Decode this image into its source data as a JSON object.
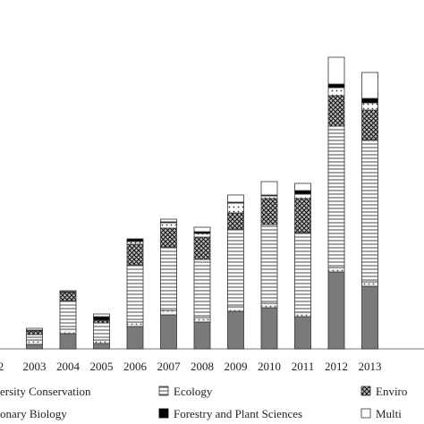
{
  "chart_data": {
    "type": "bar",
    "stacked": true,
    "title": "",
    "xlabel": "",
    "ylabel": "",
    "ylim": [
      0,
      340
    ],
    "grid": false,
    "legend_position": "bottom",
    "categories": [
      "2",
      "2003",
      "2004",
      "2005",
      "2006",
      "2007",
      "2008",
      "2009",
      "2010",
      "2011",
      "2012",
      "2013"
    ],
    "series": [
      {
        "name": "ersity Conservation",
        "pattern": "solid",
        "color": "#7a7a7a",
        "values": [
          0,
          5,
          17,
          6,
          25,
          38,
          30,
          42,
          46,
          36,
          86,
          70
        ]
      },
      {
        "name": "onary Biology",
        "pattern": "dots-light",
        "color": "#e6e6e6",
        "values": [
          0,
          5,
          5,
          4,
          5,
          5,
          5,
          5,
          5,
          5,
          5,
          5
        ]
      },
      {
        "name": "Ecology",
        "pattern": "horizontal-lines",
        "color": "#ffffff",
        "values": [
          0,
          6,
          32,
          19,
          64,
          71,
          65,
          87,
          88,
          89,
          158,
          159
        ]
      },
      {
        "name": "Environ",
        "pattern": "crosshatch",
        "color": "#444444",
        "values": [
          0,
          0,
          0,
          0,
          0,
          0,
          0,
          0,
          0,
          0,
          0,
          0
        ]
      },
      {
        "name": "Forestry and Plant Sciences",
        "pattern": "solid",
        "color": "#000000",
        "values": [
          0,
          0,
          0,
          0,
          0,
          0,
          0,
          0,
          0,
          0,
          0,
          0
        ]
      },
      {
        "name": "Multi",
        "pattern": "white",
        "color": "#ffffff",
        "values": [
          0,
          0,
          0,
          0,
          0,
          0,
          0,
          0,
          0,
          0,
          0,
          0
        ]
      }
    ],
    "extra_segments": {
      "Environ": [
        0,
        4,
        9,
        3,
        23,
        21,
        25,
        18,
        29,
        38,
        34,
        33
      ],
      "dots-upper": [
        0,
        0,
        0,
        0,
        3,
        6,
        4,
        11,
        3,
        5,
        9,
        8
      ],
      "Forestry and Plant Sciences": [
        0,
        1,
        1,
        4,
        3,
        1,
        2,
        1,
        1,
        4,
        4,
        5
      ],
      "Multi": [
        0,
        2,
        1,
        3,
        0,
        3,
        5,
        8,
        15,
        8,
        30,
        29
      ]
    },
    "legend_entries": [
      {
        "label": "ersity Conservation",
        "swatch": "none"
      },
      {
        "label": "Ecology",
        "swatch": "horizontal-lines"
      },
      {
        "label": "Enviro",
        "swatch": "crosshatch"
      },
      {
        "label": "onary Biology",
        "swatch": "none"
      },
      {
        "label": "Forestry and Plant Sciences",
        "swatch": "solid-black"
      },
      {
        "label": "Multi",
        "swatch": "white"
      }
    ]
  }
}
